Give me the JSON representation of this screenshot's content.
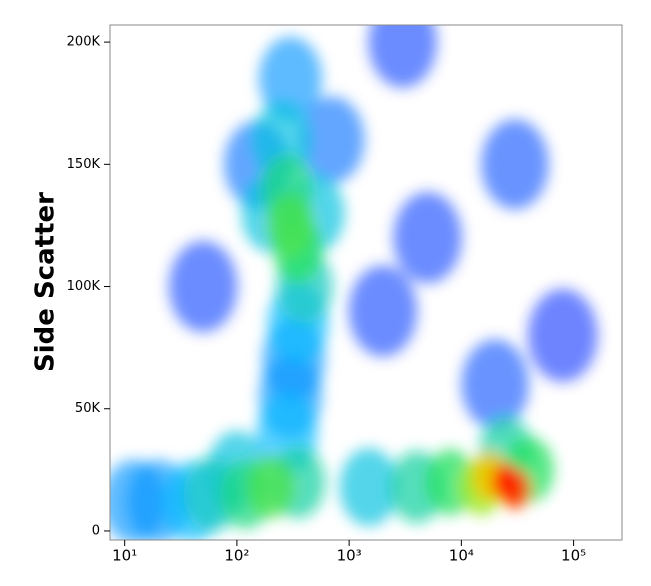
{
  "chart_data": {
    "type": "density-scatter",
    "ylabel": "Side Scatter",
    "xlog": true,
    "xlim": [
      7.4,
      270000
    ],
    "ylim": [
      -3700,
      207000
    ],
    "xticks": [
      {
        "value": 10,
        "label": "10¹"
      },
      {
        "value": 100,
        "label": "10²"
      },
      {
        "value": 1000,
        "label": "10³"
      },
      {
        "value": 10000,
        "label": "10⁴"
      },
      {
        "value": 100000,
        "label": "10⁵"
      }
    ],
    "yticks": [
      0,
      {
        "value": 50000,
        "label": "50K"
      },
      {
        "value": 100000,
        "label": "100K"
      },
      {
        "value": 150000,
        "label": "150K"
      },
      {
        "value": 200000,
        "label": "200K"
      }
    ],
    "colorscale": [
      "#0000ff",
      "#00b8ff",
      "#20e060",
      "#f0f000",
      "#ff2000"
    ],
    "x": [
      80000,
      5000,
      2000,
      50,
      3000,
      30000,
      20000,
      150,
      700,
      300,
      320,
      300,
      20,
      12,
      350,
      280,
      40,
      250,
      200,
      500,
      100,
      1500,
      400,
      60,
      350,
      4000,
      25000,
      280,
      120,
      350,
      8000,
      40000,
      300,
      200,
      15000,
      18000,
      30000,
      25000
    ],
    "y": [
      80000,
      120000,
      90000,
      100000,
      200000,
      150000,
      60000,
      150000,
      160000,
      185000,
      70000,
      55000,
      12000,
      12000,
      85000,
      40000,
      12000,
      160000,
      130000,
      130000,
      25000,
      18000,
      100000,
      15000,
      20000,
      18000,
      32000,
      140000,
      15000,
      115000,
      20000,
      25000,
      125000,
      18000,
      18000,
      22000,
      17000,
      20000
    ],
    "density": [
      0.05,
      0.08,
      0.08,
      0.08,
      0.08,
      0.1,
      0.1,
      0.15,
      0.15,
      0.2,
      0.2,
      0.2,
      0.2,
      0.2,
      0.25,
      0.25,
      0.25,
      0.3,
      0.3,
      0.3,
      0.3,
      0.3,
      0.35,
      0.35,
      0.4,
      0.4,
      0.4,
      0.45,
      0.45,
      0.5,
      0.5,
      0.5,
      0.55,
      0.55,
      0.65,
      0.8,
      0.95,
      1.0
    ]
  }
}
